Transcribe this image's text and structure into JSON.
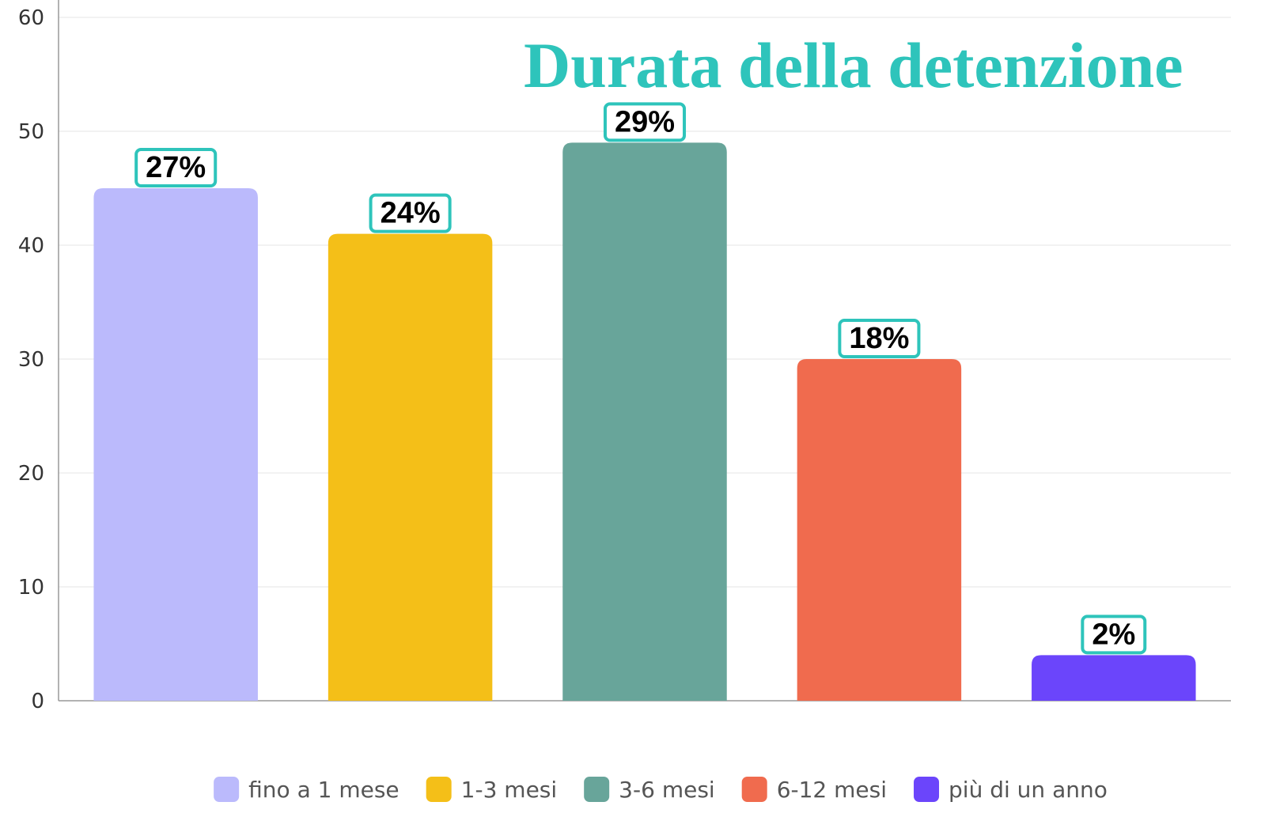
{
  "chart_data": {
    "type": "bar",
    "title": "Durata della detenzione",
    "categories": [
      "fino a 1 mese",
      "1-3 mesi",
      "3-6 mesi",
      "6-12 mesi",
      "più di un anno"
    ],
    "values": [
      45,
      41,
      49,
      30,
      4
    ],
    "annotations": [
      "27%",
      "24%",
      "29%",
      "18%",
      "2%"
    ],
    "colors": [
      "#bbbafc",
      "#f4bf18",
      "#68a59a",
      "#f06b4e",
      "#6b45fb"
    ],
    "ylim": [
      0,
      60
    ],
    "yticks": [
      0,
      10,
      20,
      30,
      40,
      50,
      60
    ],
    "grid": true,
    "legend": "bottom"
  }
}
